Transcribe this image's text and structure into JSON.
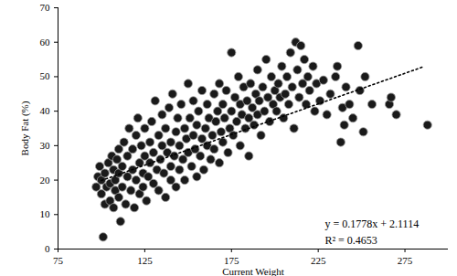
{
  "chart_data": {
    "type": "scatter",
    "x_label": "Current Weight",
    "y_label": "Body Fat (%)",
    "xlim": [
      75,
      300
    ],
    "xticks": [
      75,
      125,
      175,
      225,
      275
    ],
    "ylim": [
      0,
      70
    ],
    "yticks": [
      0,
      10,
      20,
      30,
      40,
      50,
      60,
      70
    ],
    "grid": false,
    "color": "#1a1a1a",
    "marker": "circle",
    "x": [
      97,
      98,
      99,
      100,
      100,
      101,
      102,
      102,
      103,
      104,
      105,
      105,
      106,
      107,
      107,
      108,
      108,
      109,
      110,
      110,
      110,
      111,
      112,
      112,
      113,
      114,
      115,
      115,
      116,
      117,
      118,
      118,
      119,
      120,
      120,
      121,
      122,
      122,
      123,
      124,
      124,
      125,
      125,
      126,
      127,
      128,
      128,
      129,
      130,
      130,
      131,
      132,
      133,
      133,
      134,
      135,
      135,
      136,
      137,
      137,
      138,
      139,
      140,
      140,
      140,
      141,
      142,
      143,
      143,
      144,
      145,
      145,
      146,
      147,
      148,
      148,
      149,
      150,
      150,
      151,
      152,
      153,
      153,
      154,
      155,
      155,
      156,
      157,
      158,
      158,
      159,
      160,
      161,
      161,
      162,
      163,
      164,
      165,
      165,
      166,
      167,
      168,
      168,
      169,
      170,
      170,
      171,
      172,
      173,
      174,
      175,
      175,
      176,
      177,
      178,
      179,
      180,
      180,
      181,
      182,
      183,
      184,
      185,
      185,
      186,
      187,
      188,
      189,
      190,
      190,
      191,
      192,
      193,
      194,
      195,
      196,
      197,
      198,
      199,
      200,
      201,
      202,
      203,
      204,
      205,
      206,
      207,
      208,
      209,
      210,
      211,
      212,
      213,
      214,
      215,
      216,
      217,
      218,
      219,
      220,
      222,
      223,
      224,
      226,
      228,
      230,
      232,
      235,
      236,
      238,
      239,
      240,
      241,
      243,
      245,
      248,
      249,
      251,
      252,
      256,
      266,
      267,
      270,
      288
    ],
    "values": [
      18,
      21,
      24,
      16,
      20,
      3.5,
      13,
      22,
      18,
      25,
      14,
      19,
      27,
      12,
      23,
      17,
      20,
      26,
      15,
      29,
      22,
      8,
      18,
      24,
      31,
      13,
      21,
      27,
      35,
      17,
      23,
      29,
      12,
      20,
      33,
      38,
      16,
      25,
      30,
      22,
      18,
      27,
      35,
      14,
      21,
      31,
      25,
      37,
      19,
      28,
      43,
      23,
      33,
      17,
      26,
      30,
      39,
      22,
      15,
      35,
      28,
      41,
      24,
      31,
      20,
      45,
      27,
      34,
      18,
      38,
      23,
      30,
      42,
      26,
      35,
      20,
      32,
      28,
      48,
      38,
      24,
      33,
      43,
      29,
      36,
      21,
      40,
      27,
      46,
      32,
      23,
      35,
      30,
      42,
      38,
      26,
      33,
      45,
      29,
      37,
      40,
      25,
      48,
      34,
      31,
      42,
      38,
      46,
      28,
      35,
      40,
      57,
      33,
      44,
      37,
      50,
      30,
      42,
      39,
      47,
      35,
      43,
      38,
      27,
      48,
      41,
      36,
      45,
      52,
      39,
      43,
      33,
      47,
      40,
      55,
      44,
      37,
      50,
      42,
      46,
      40,
      48,
      44,
      53,
      38,
      45,
      50,
      42,
      57,
      47,
      35,
      60,
      52,
      44,
      59,
      48,
      55,
      42,
      50,
      46,
      53,
      40,
      48,
      43,
      49,
      39,
      45,
      50,
      53,
      31,
      41,
      36,
      47,
      42,
      38,
      59,
      46,
      34,
      50,
      42,
      42,
      44,
      39,
      36
    ],
    "trendline": {
      "x": [
        100,
        285
      ],
      "values": [
        19.89,
        52.78
      ],
      "line_style": "dotted",
      "color": "#000000"
    },
    "annotations": [
      "y = 0.1778x + 2.1114",
      "R² = 0.4653"
    ]
  }
}
